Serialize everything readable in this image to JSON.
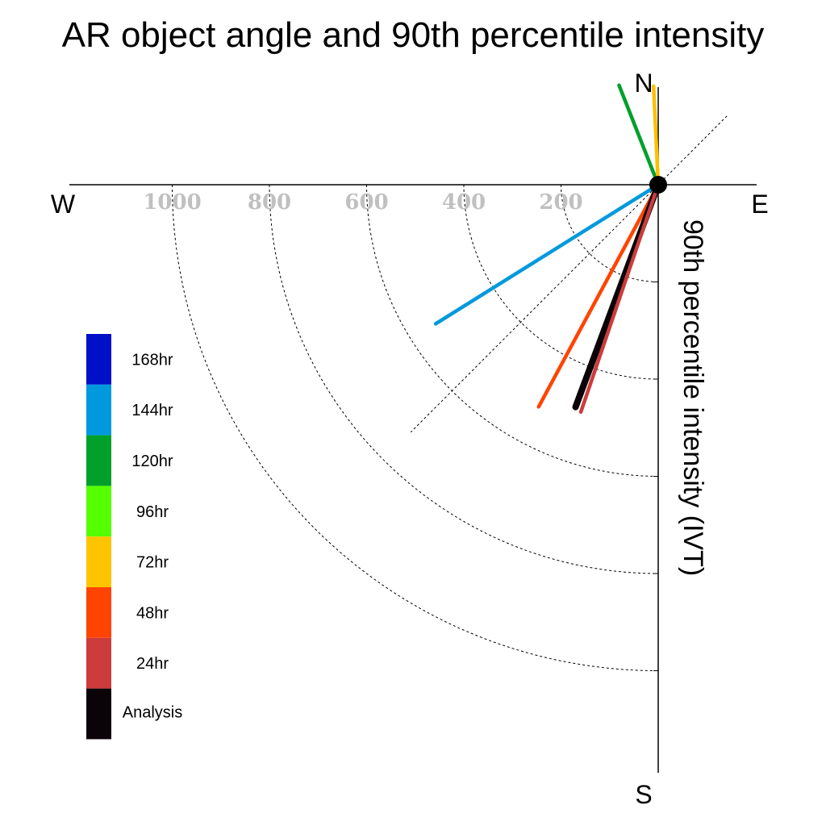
{
  "chart_data": {
    "type": "polar-line",
    "title": "AR object angle and 90th percentile intensity",
    "ylabel": "90th percentile intensity (IVT)",
    "compass": {
      "north": "N",
      "south": "S",
      "east": "E",
      "west": "W"
    },
    "radial_ticks": [
      "200",
      "400",
      "600",
      "800",
      "1000"
    ],
    "radial_range": [
      0,
      1200
    ],
    "series": [
      {
        "name": "144hr",
        "color": "#0099dd",
        "angle_deg": 238.0,
        "intensity": 540
      },
      {
        "name": "48hr",
        "color": "#ff4400",
        "angle_deg": 208.3,
        "intensity": 519
      },
      {
        "name": "Analysis",
        "color": "#0a0408",
        "angle_deg": 200.4,
        "intensity": 488
      },
      {
        "name": "24hr",
        "color": "#cc3c3c",
        "angle_deg": 198.8,
        "intensity": 494
      },
      {
        "name": "120hr",
        "color": "#00a02a",
        "angle_deg": 338.5,
        "intensity": 220
      },
      {
        "name": "72hr",
        "color": "#ffbf00",
        "angle_deg": 357.3,
        "intensity": 203
      }
    ],
    "legend": [
      {
        "label": "168hr",
        "color": "#0010c8"
      },
      {
        "label": "144hr",
        "color": "#0099dd"
      },
      {
        "label": "120hr",
        "color": "#00a02a"
      },
      {
        "label": "96hr",
        "color": "#55ff00"
      },
      {
        "label": "72hr",
        "color": "#ffc400"
      },
      {
        "label": "48hr",
        "color": "#ff4400"
      },
      {
        "label": "24hr",
        "color": "#cc3c3c"
      },
      {
        "label": "Analysis",
        "color": "#0a0408"
      }
    ],
    "legend_placement": "left",
    "grid": true
  }
}
